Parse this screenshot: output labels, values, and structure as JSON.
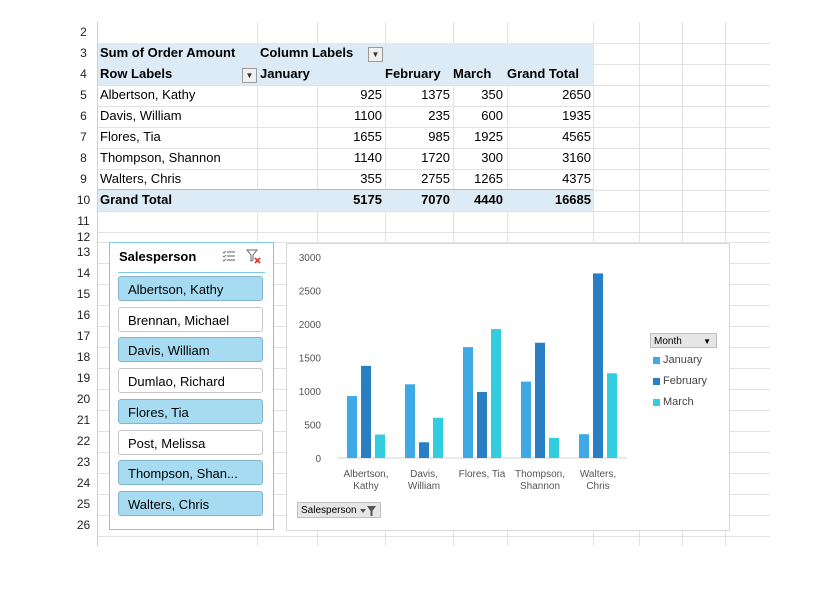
{
  "rows": [
    "2",
    "3",
    "4",
    "5",
    "6",
    "7",
    "8",
    "9",
    "10",
    "11",
    "12",
    "13",
    "14",
    "15",
    "16",
    "17",
    "18",
    "19",
    "20",
    "21",
    "22",
    "23",
    "24",
    "25",
    "26"
  ],
  "pivot": {
    "title": "Sum of Order Amount",
    "column_labels": "Column Labels",
    "row_labels": "Row Labels",
    "headers": [
      "January",
      "February",
      "March",
      "Grand Total"
    ],
    "body": [
      {
        "name": "Albertson, Kathy",
        "jan": "925",
        "feb": "1375",
        "mar": "350",
        "total": "2650"
      },
      {
        "name": "Davis, William",
        "jan": "1100",
        "feb": "235",
        "mar": "600",
        "total": "1935"
      },
      {
        "name": "Flores, Tia",
        "jan": "1655",
        "feb": "985",
        "mar": "1925",
        "total": "4565"
      },
      {
        "name": "Thompson, Shannon",
        "jan": "1140",
        "feb": "1720",
        "mar": "300",
        "total": "3160"
      },
      {
        "name": "Walters, Chris",
        "jan": "355",
        "feb": "2755",
        "mar": "1265",
        "total": "4375"
      }
    ],
    "grand": {
      "label": "Grand Total",
      "jan": "5175",
      "feb": "7070",
      "mar": "4440",
      "total": "16685"
    }
  },
  "slicer": {
    "title": "Salesperson",
    "items": [
      {
        "label": "Albertson, Kathy",
        "selected": true
      },
      {
        "label": "Brennan, Michael",
        "selected": false
      },
      {
        "label": "Davis, William",
        "selected": true
      },
      {
        "label": "Dumlao, Richard",
        "selected": false
      },
      {
        "label": "Flores, Tia",
        "selected": true
      },
      {
        "label": "Post, Melissa",
        "selected": false
      },
      {
        "label": "Thompson, Shan...",
        "selected": true
      },
      {
        "label": "Walters, Chris",
        "selected": true
      }
    ]
  },
  "chart_data": {
    "type": "bar",
    "categories": [
      [
        "Albertson,",
        "Kathy"
      ],
      [
        "Davis,",
        "William"
      ],
      [
        "Flores, Tia"
      ],
      [
        "Thompson,",
        "Shannon"
      ],
      [
        "Walters,",
        "Chris"
      ]
    ],
    "series": [
      {
        "name": "January",
        "values": [
          925,
          1100,
          1655,
          1140,
          355
        ],
        "color": "#3fa9e6"
      },
      {
        "name": "February",
        "values": [
          1375,
          235,
          985,
          1720,
          2755
        ],
        "color": "#2a7ec4"
      },
      {
        "name": "March",
        "values": [
          350,
          600,
          1925,
          300,
          1265
        ],
        "color": "#33cde0"
      }
    ],
    "ylim": [
      0,
      3000
    ],
    "yticks": [
      0,
      500,
      1000,
      1500,
      2000,
      2500,
      3000
    ],
    "legend_title": "Month",
    "legend_position": "right",
    "field_button": "Salesperson",
    "grid": false
  },
  "colors": {
    "band": "#ddebf7",
    "slicer_selected": "#a6dbf2",
    "slicer_border": "#7dc8e6"
  }
}
